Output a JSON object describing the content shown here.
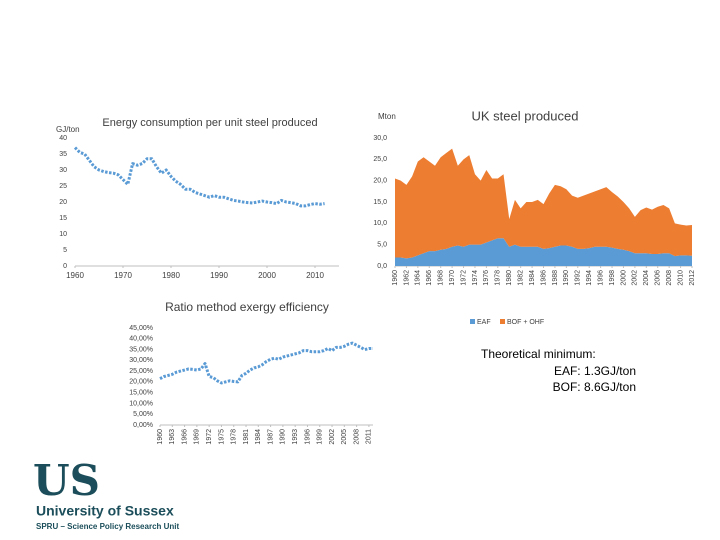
{
  "chart_data": [
    {
      "type": "line",
      "title": "Energy consumption per unit steel produced",
      "y_label": "GJ/ton",
      "x": [
        1960,
        1961,
        1962,
        1963,
        1964,
        1965,
        1966,
        1967,
        1968,
        1969,
        1970,
        1971,
        1972,
        1973,
        1974,
        1975,
        1976,
        1977,
        1978,
        1979,
        1980,
        1981,
        1982,
        1983,
        1984,
        1985,
        1986,
        1987,
        1988,
        1989,
        1990,
        1991,
        1992,
        1993,
        1994,
        1995,
        1996,
        1997,
        1998,
        1999,
        2000,
        2001,
        2002,
        2003,
        2004,
        2005,
        2006,
        2007,
        2008,
        2009,
        2010,
        2011,
        2012
      ],
      "series": [
        {
          "color": "#5b9bd5",
          "values": [
            37,
            35.5,
            35,
            33,
            31,
            30,
            29.5,
            29.2,
            29,
            28.5,
            27,
            25.5,
            32,
            31.5,
            32,
            33.5,
            33.5,
            31,
            29,
            30,
            28,
            26.5,
            25.5,
            24,
            24,
            23,
            22.5,
            22,
            21.5,
            22,
            21.5,
            21.5,
            21,
            20.5,
            20.3,
            20,
            19.8,
            19.7,
            20,
            20.3,
            20,
            19.8,
            19.5,
            20.5,
            20,
            19.8,
            19.5,
            18.8,
            18.8,
            19.2,
            19.5,
            19.3,
            19.5
          ]
        }
      ],
      "xlim": [
        1960,
        2015
      ],
      "ylim": [
        0,
        40
      ],
      "xticks": [
        1960,
        1970,
        1980,
        1990,
        2000,
        2010
      ],
      "yticks": [
        0,
        5,
        10,
        15,
        20,
        25,
        30,
        35,
        40
      ]
    },
    {
      "type": "area",
      "title": "UK steel produced",
      "y_label": "Mton",
      "stacked": true,
      "legend": "bottom",
      "x": [
        1960,
        1961,
        1962,
        1963,
        1964,
        1965,
        1966,
        1967,
        1968,
        1969,
        1970,
        1971,
        1972,
        1973,
        1974,
        1975,
        1976,
        1977,
        1978,
        1979,
        1980,
        1981,
        1982,
        1983,
        1984,
        1985,
        1986,
        1987,
        1988,
        1989,
        1990,
        1991,
        1992,
        1993,
        1994,
        1995,
        1996,
        1997,
        1998,
        1999,
        2000,
        2001,
        2002,
        2003,
        2004,
        2005,
        2006,
        2007,
        2008,
        2009,
        2010,
        2011,
        2012
      ],
      "series": [
        {
          "name": "EAF",
          "color": "#5b9bd5",
          "values": [
            2,
            2,
            1.8,
            2,
            2.5,
            3,
            3.5,
            3.5,
            3.8,
            4,
            4.5,
            4.8,
            4.5,
            5,
            5,
            5,
            5.5,
            6,
            6.5,
            6.5,
            4.5,
            5,
            4.5,
            4.5,
            4.5,
            4.5,
            4,
            4.2,
            4.5,
            4.8,
            4.8,
            4.5,
            4,
            4,
            4.2,
            4.5,
            4.5,
            4.5,
            4.3,
            4,
            3.8,
            3.5,
            3,
            3,
            3,
            2.8,
            2.8,
            3,
            3,
            2.3,
            2.5,
            2.5,
            2.4
          ]
        },
        {
          "name": "BOF + OHF",
          "color": "#ed7d31",
          "values": [
            18.5,
            18,
            17.2,
            19,
            22,
            22.5,
            21,
            20,
            21.7,
            22.5,
            23,
            18.7,
            20.5,
            21,
            16.5,
            15,
            17,
            14.5,
            14,
            15,
            6.5,
            10.5,
            9,
            10.5,
            10.5,
            11,
            10.5,
            12.8,
            14.5,
            13.9,
            13.2,
            12,
            12,
            12.5,
            12.8,
            13,
            13.5,
            14,
            13,
            12.3,
            11.2,
            10,
            8.5,
            10.1,
            10.7,
            10.4,
            11.1,
            11.3,
            10.5,
            7.7,
            7.2,
            7,
            7.2
          ]
        }
      ],
      "xlim": [
        1960,
        2012
      ],
      "ylim": [
        0,
        30
      ],
      "xticks": [
        1960,
        1962,
        1964,
        1966,
        1968,
        1970,
        1972,
        1974,
        1976,
        1978,
        1980,
        1982,
        1984,
        1986,
        1988,
        1990,
        1992,
        1994,
        1996,
        1998,
        2000,
        2002,
        2004,
        2006,
        2008,
        2010,
        2012
      ],
      "yticks": [
        {
          "value": 0,
          "label": "0,0"
        },
        {
          "value": 5,
          "label": "5,0"
        },
        {
          "value": 10,
          "label": "10,0"
        },
        {
          "value": 15,
          "label": "15,0"
        },
        {
          "value": 20,
          "label": "20,0"
        },
        {
          "value": 25,
          "label": "25,0"
        },
        {
          "value": 30,
          "label": "30,0"
        }
      ]
    },
    {
      "type": "line",
      "title": "Ratio method exergy efficiency",
      "x": [
        1960,
        1961,
        1962,
        1963,
        1964,
        1965,
        1966,
        1967,
        1968,
        1969,
        1970,
        1971,
        1972,
        1973,
        1974,
        1975,
        1976,
        1977,
        1978,
        1979,
        1980,
        1981,
        1982,
        1983,
        1984,
        1985,
        1986,
        1987,
        1988,
        1989,
        1990,
        1991,
        1992,
        1993,
        1994,
        1995,
        1996,
        1997,
        1998,
        1999,
        2000,
        2001,
        2002,
        2003,
        2004,
        2005,
        2006,
        2007,
        2008,
        2009,
        2010,
        2011,
        2012
      ],
      "series": [
        {
          "color": "#5b9bd5",
          "values": [
            21.5,
            22.5,
            23,
            23.5,
            24.5,
            25,
            25.5,
            26,
            25.8,
            25.5,
            26,
            28.5,
            22.5,
            22,
            20.5,
            19.5,
            20,
            20.5,
            20.2,
            20,
            23,
            24,
            25.5,
            26.5,
            27,
            28,
            29.5,
            30.5,
            31,
            30.5,
            31.5,
            32,
            32.5,
            33,
            33.5,
            34.5,
            34.5,
            34,
            34,
            34,
            34.5,
            35.5,
            34.5,
            36,
            36,
            36.5,
            37.5,
            38,
            37,
            36,
            35,
            35.5,
            35.5
          ]
        }
      ],
      "xlim": [
        1960,
        2012
      ],
      "ylim": [
        0,
        45
      ],
      "xticks": [
        1960,
        1963,
        1966,
        1969,
        1972,
        1975,
        1978,
        1981,
        1984,
        1987,
        1990,
        1993,
        1996,
        1999,
        2002,
        2005,
        2008,
        2011
      ],
      "yticks": [
        {
          "value": 0,
          "label": "0,00%"
        },
        {
          "value": 5,
          "label": "5,00%"
        },
        {
          "value": 10,
          "label": "10,00%"
        },
        {
          "value": 15,
          "label": "15,00%"
        },
        {
          "value": 20,
          "label": "20,00%"
        },
        {
          "value": 25,
          "label": "25,00%"
        },
        {
          "value": 30,
          "label": "30,00%"
        },
        {
          "value": 35,
          "label": "35,00%"
        },
        {
          "value": 40,
          "label": "40,00%"
        },
        {
          "value": 45,
          "label": "45,00%"
        }
      ]
    }
  ],
  "text_box": {
    "lines": [
      "Theoretical minimum:",
      "EAF: 1.3GJ/ton",
      "BOF: 8.6GJ/ton"
    ]
  },
  "logo": {
    "mark": "US",
    "name": "University of Sussex",
    "unit": "SPRU – Science Policy Research Unit"
  }
}
